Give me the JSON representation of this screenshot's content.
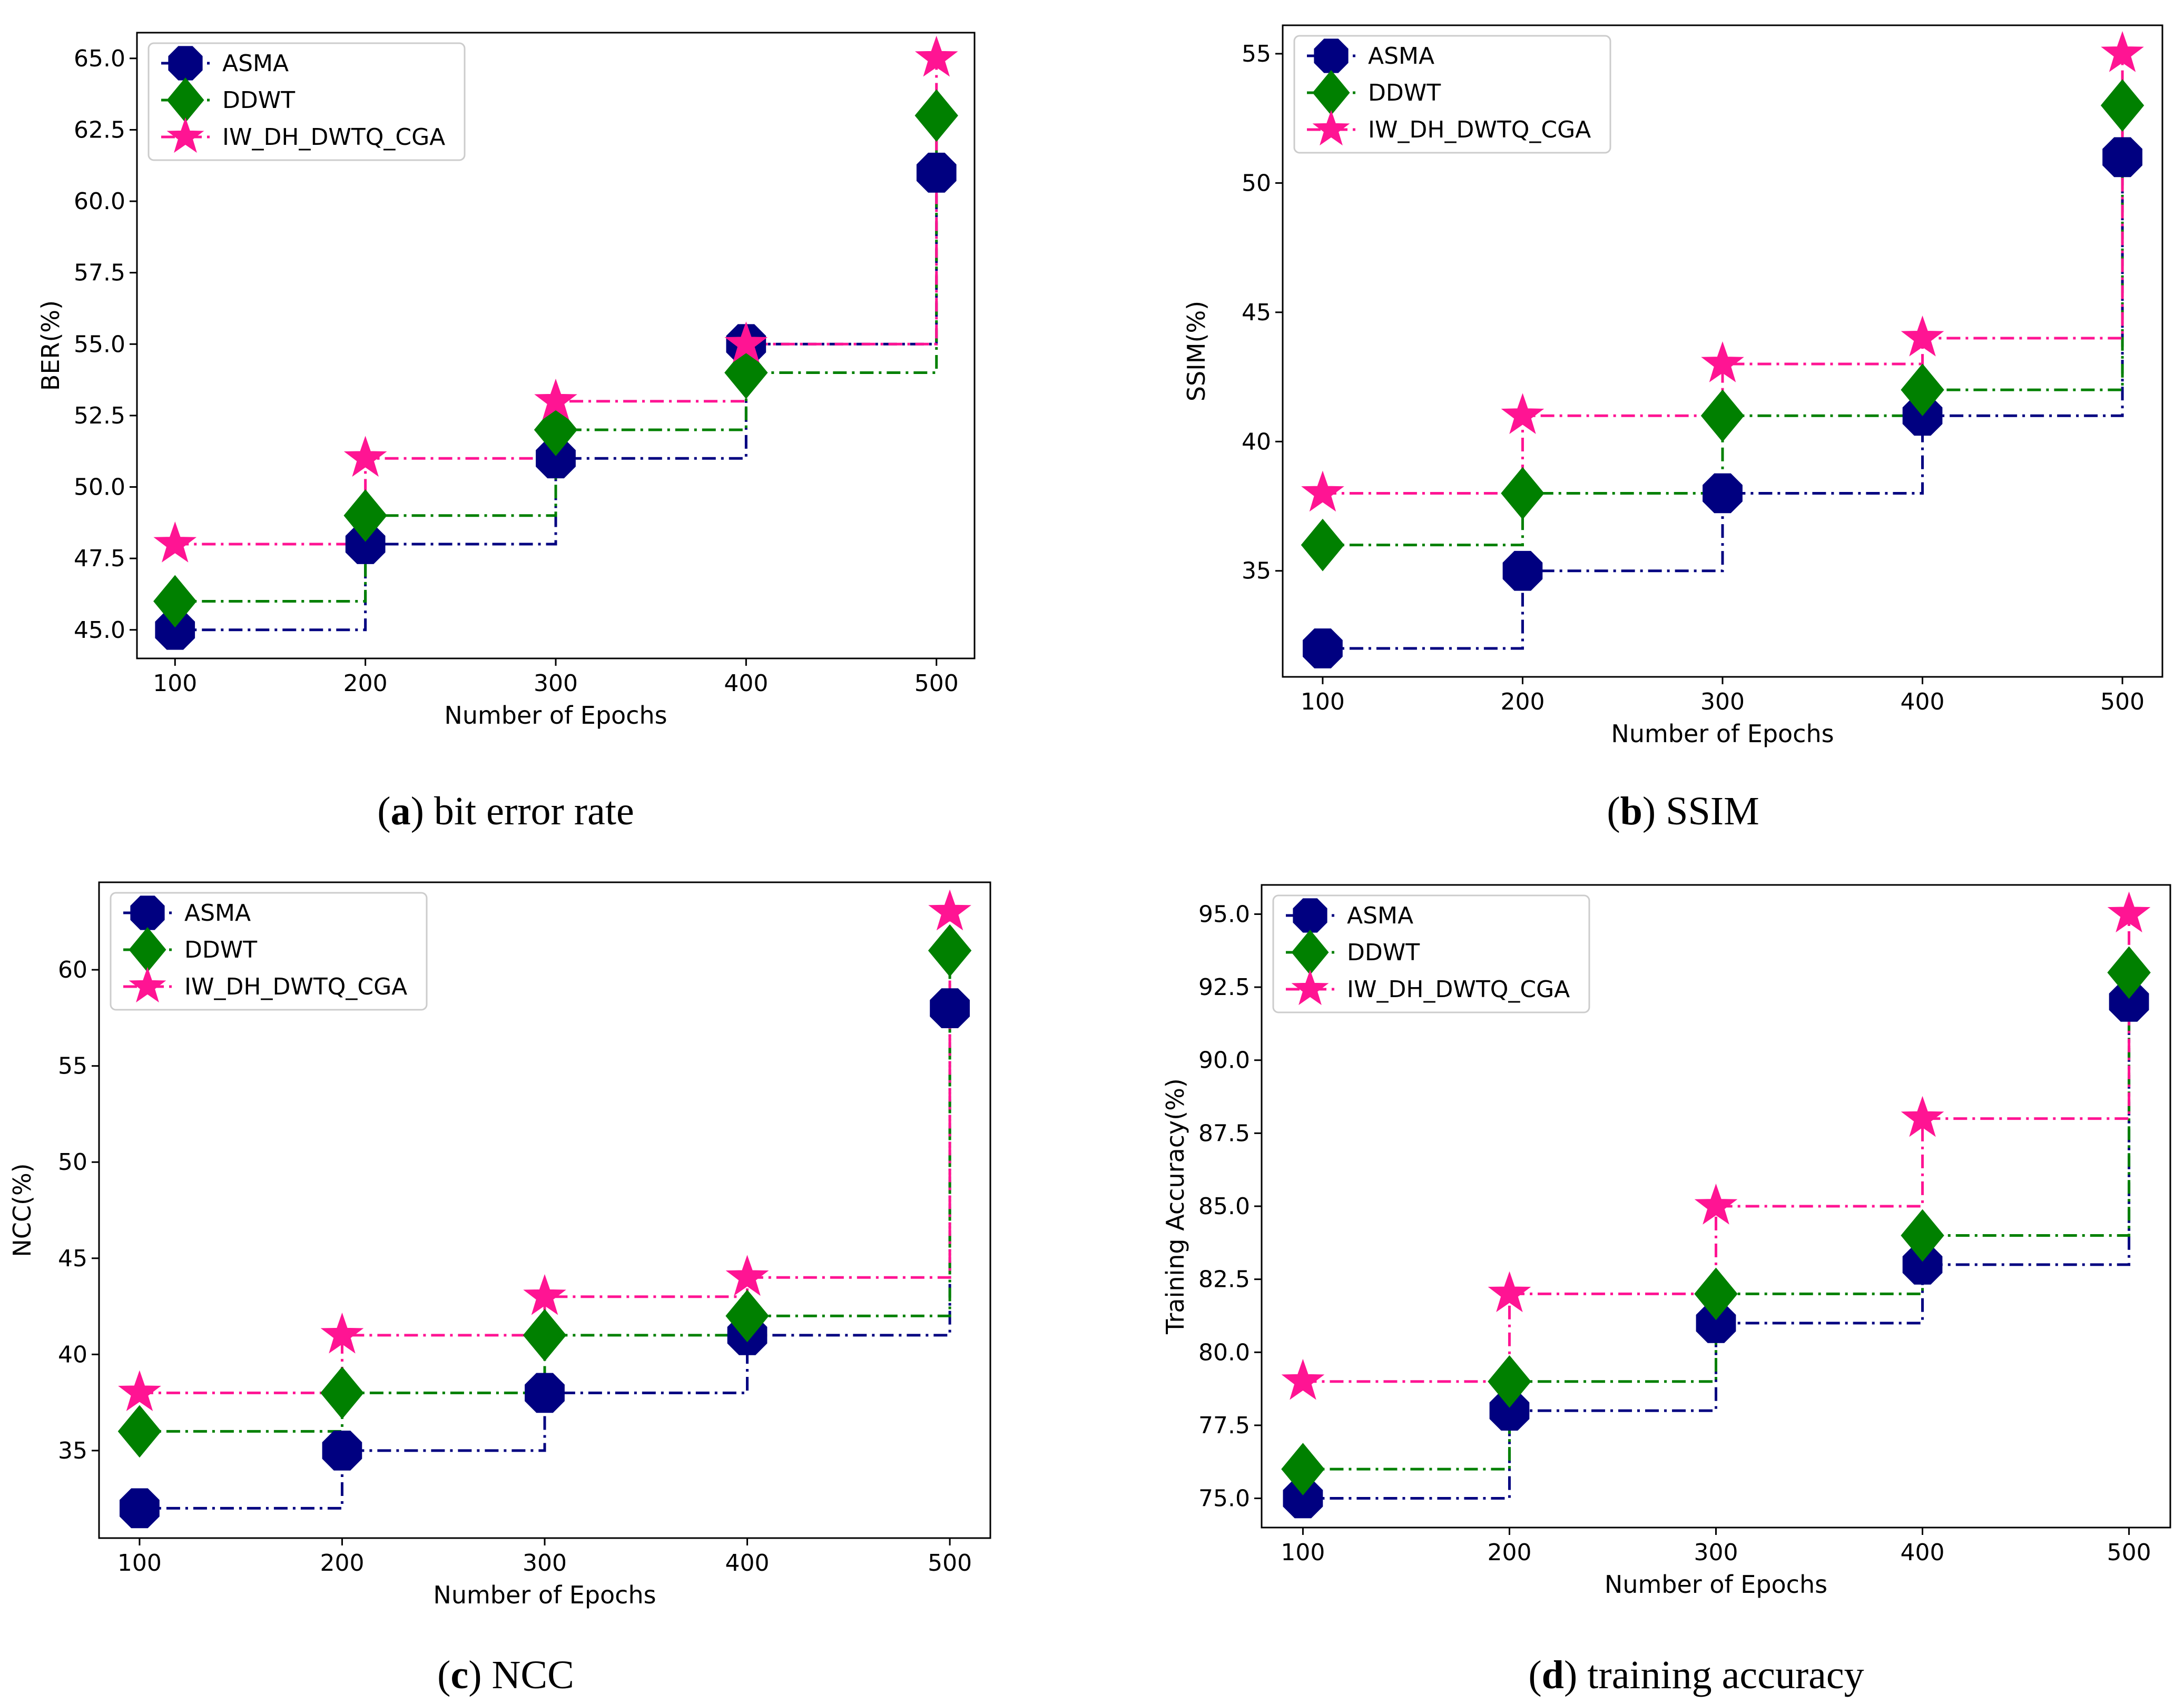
{
  "figure": {
    "legend_entries": [
      "ASMA",
      "DDWT",
      "IW_DH_DWTQ_CGA"
    ]
  },
  "series_styles": {
    "ASMA": {
      "color": "#000080",
      "marker": "octagon"
    },
    "DDWT": {
      "color": "#008000",
      "marker": "diamond"
    },
    "IW_DH_DWTQ_CGA": {
      "color": "#ff1493",
      "marker": "star"
    }
  },
  "chart_data": [
    {
      "id": "a",
      "type": "line",
      "step": "post",
      "caption_letter": "a",
      "caption_text": "bit error rate",
      "title": "",
      "xlabel": "Number of Epochs",
      "ylabel": "BER(%)",
      "x": [
        100,
        200,
        300,
        400,
        500
      ],
      "xlim": [
        80,
        520
      ],
      "ylim": [
        44.0,
        65.9
      ],
      "yticks": [
        45.0,
        47.5,
        50.0,
        52.5,
        55.0,
        57.5,
        60.0,
        62.5,
        65.0
      ],
      "ytick_labels": [
        "45.0",
        "47.5",
        "50.0",
        "52.5",
        "55.0",
        "57.5",
        "60.0",
        "62.5",
        "65.0"
      ],
      "xticks": [
        100,
        200,
        300,
        400,
        500
      ],
      "xtick_labels": [
        "100",
        "200",
        "300",
        "400",
        "500"
      ],
      "legend_position": "top-left",
      "grid": false,
      "series": [
        {
          "name": "ASMA",
          "values": [
            45,
            48,
            51,
            55,
            61
          ]
        },
        {
          "name": "DDWT",
          "values": [
            46,
            49,
            52,
            54,
            63
          ]
        },
        {
          "name": "IW_DH_DWTQ_CGA",
          "values": [
            48,
            51,
            53,
            55,
            65
          ]
        }
      ]
    },
    {
      "id": "b",
      "type": "line",
      "step": "post",
      "caption_letter": "b",
      "caption_text": "SSIM",
      "title": "",
      "xlabel": "Number of Epochs",
      "ylabel": "SSIM(%)",
      "x": [
        100,
        200,
        300,
        400,
        500
      ],
      "xlim": [
        80,
        520
      ],
      "ylim": [
        30.9,
        56.1
      ],
      "yticks": [
        35,
        40,
        45,
        50,
        55
      ],
      "ytick_labels": [
        "35",
        "40",
        "45",
        "50",
        "55"
      ],
      "xticks": [
        100,
        200,
        300,
        400,
        500
      ],
      "xtick_labels": [
        "100",
        "200",
        "300",
        "400",
        "500"
      ],
      "legend_position": "top-left",
      "grid": false,
      "series": [
        {
          "name": "ASMA",
          "values": [
            32,
            35,
            38,
            41,
            51
          ]
        },
        {
          "name": "DDWT",
          "values": [
            36,
            38,
            41,
            42,
            53
          ]
        },
        {
          "name": "IW_DH_DWTQ_CGA",
          "values": [
            38,
            41,
            43,
            44,
            55
          ]
        }
      ]
    },
    {
      "id": "c",
      "type": "line",
      "step": "post",
      "caption_letter": "c",
      "caption_text": "NCC",
      "title": "",
      "xlabel": "Number of Epochs",
      "ylabel": "NCC(%)",
      "x": [
        100,
        200,
        300,
        400,
        500
      ],
      "xlim": [
        80,
        520
      ],
      "ylim": [
        30.45,
        64.55
      ],
      "yticks": [
        35,
        40,
        45,
        50,
        55,
        60
      ],
      "ytick_labels": [
        "35",
        "40",
        "45",
        "50",
        "55",
        "60"
      ],
      "xticks": [
        100,
        200,
        300,
        400,
        500
      ],
      "xtick_labels": [
        "100",
        "200",
        "300",
        "400",
        "500"
      ],
      "legend_position": "top-left",
      "grid": false,
      "series": [
        {
          "name": "ASMA",
          "values": [
            32,
            35,
            38,
            41,
            58
          ]
        },
        {
          "name": "DDWT",
          "values": [
            36,
            38,
            41,
            42,
            61
          ]
        },
        {
          "name": "IW_DH_DWTQ_CGA",
          "values": [
            38,
            41,
            43,
            44,
            63
          ]
        }
      ]
    },
    {
      "id": "d",
      "type": "line",
      "step": "post",
      "caption_letter": "d",
      "caption_text": "training accuracy",
      "title": "",
      "xlabel": "Number of Epochs",
      "ylabel": "Training Accuracy(%)",
      "x": [
        100,
        200,
        300,
        400,
        500
      ],
      "xlim": [
        80,
        520
      ],
      "ylim": [
        74.0,
        96.0
      ],
      "yticks": [
        75.0,
        77.5,
        80.0,
        82.5,
        85.0,
        87.5,
        90.0,
        92.5,
        95.0
      ],
      "ytick_labels": [
        "75.0",
        "77.5",
        "80.0",
        "82.5",
        "85.0",
        "87.5",
        "90.0",
        "92.5",
        "95.0"
      ],
      "xticks": [
        100,
        200,
        300,
        400,
        500
      ],
      "xtick_labels": [
        "100",
        "200",
        "300",
        "400",
        "500"
      ],
      "legend_position": "top-left",
      "grid": false,
      "series": [
        {
          "name": "ASMA",
          "values": [
            75,
            78,
            81,
            83,
            92
          ]
        },
        {
          "name": "DDWT",
          "values": [
            76,
            79,
            82,
            84,
            93
          ]
        },
        {
          "name": "IW_DH_DWTQ_CGA",
          "values": [
            79,
            82,
            85,
            88,
            95
          ]
        }
      ]
    }
  ]
}
